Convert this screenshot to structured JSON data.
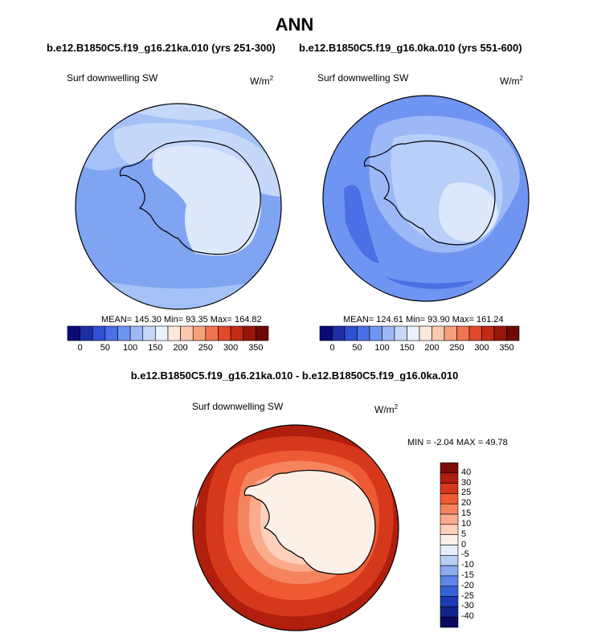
{
  "title": "ANN",
  "panels": [
    {
      "case": "b.e12.B1850C5.f19_g16.21ka.010 (yrs 251-300)",
      "variable": "Surf downwelling SW",
      "units": "W/m",
      "units_sup": "2",
      "stats": "MEAN= 145.30  Min=  93.35  Max= 164.82",
      "mean": 145.3,
      "min": 93.35,
      "max": 164.82
    },
    {
      "case": "b.e12.B1850C5.f19_g16.0ka.010 (yrs 551-600)",
      "variable": "Surf downwelling SW",
      "units": "W/m",
      "units_sup": "2",
      "stats": "MEAN= 124.61  Min=  93.90  Max= 161.24",
      "mean": 124.61,
      "min": 93.9,
      "max": 161.24
    }
  ],
  "diff_panel": {
    "title": "b.e12.B1850C5.f19_g16.21ka.010 - b.e12.B1850C5.f19_g16.0ka.010",
    "variable": "Surf downwelling SW",
    "units": "W/m",
    "units_sup": "2",
    "stats": "MIN =  -2.04 MAX =  49.78",
    "min": -2.04,
    "max": 49.78
  },
  "abs_colorbar": {
    "labels": [
      "0",
      "50",
      "100",
      "150",
      "200",
      "250",
      "300",
      "350"
    ],
    "colors": [
      "#0a0a78",
      "#1d2ea6",
      "#2f4fd4",
      "#4a6fe6",
      "#6f95f2",
      "#9cb8f7",
      "#c6d8fa",
      "#eaf2fd",
      "#fde8dc",
      "#fbc8ae",
      "#f7a07c",
      "#f0754f",
      "#e14a2b",
      "#c22a14",
      "#98150a",
      "#6e0a05"
    ]
  },
  "diff_colorbar": {
    "labels": [
      "40",
      "30",
      "25",
      "20",
      "15",
      "10",
      "5",
      "0",
      "-5",
      "-10",
      "-15",
      "-20",
      "-25",
      "-30",
      "-40"
    ],
    "colors": [
      "#7a0b06",
      "#b01e0e",
      "#d6381c",
      "#ee5a33",
      "#f5845e",
      "#f9ab8b",
      "#fcd0bb",
      "#fdf0e8",
      "#e6eefc",
      "#b9cdf6",
      "#8aabef",
      "#5d86e6",
      "#3662d9",
      "#1c3bb5",
      "#102488",
      "#0a0a60"
    ]
  }
}
